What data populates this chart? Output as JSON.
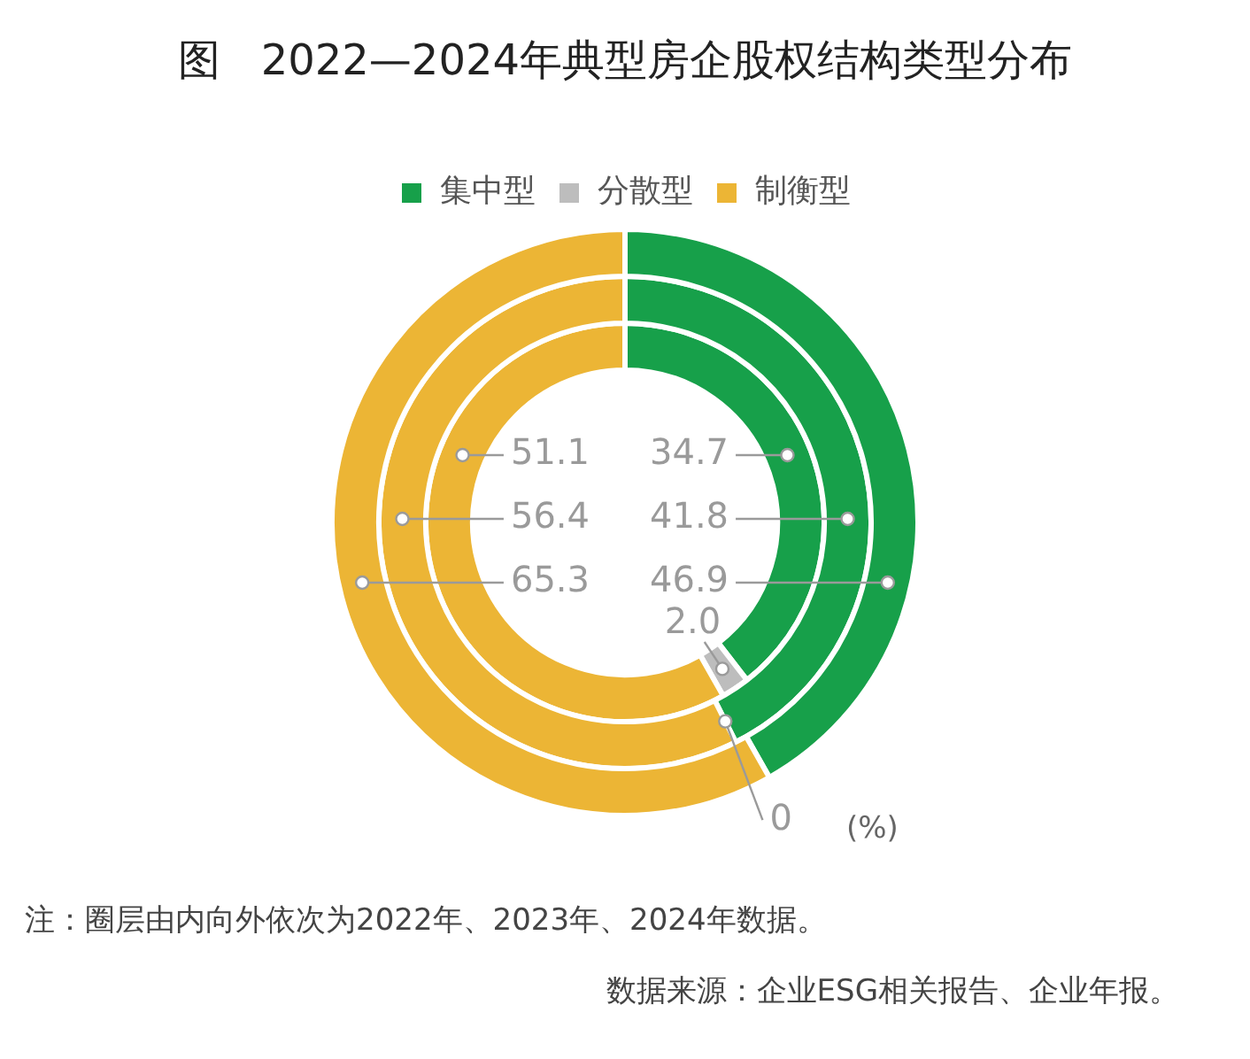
{
  "chart_data": {
    "type": "donut",
    "title": "图   2022—2024年典型房企股权结构类型分布",
    "categories": [
      "集中型",
      "分散型",
      "制衡型"
    ],
    "colors": [
      "#17a04a",
      "#bdbdbd",
      "#ecb535"
    ],
    "series": [
      {
        "values": [
          46.9,
          0,
          65.3
        ],
        "value_labels": [
          "46.9",
          null,
          "65.3"
        ]
      },
      {
        "values": [
          41.8,
          0,
          56.4
        ],
        "value_labels": [
          "41.8",
          "0",
          "56.4"
        ]
      },
      {
        "values": [
          34.7,
          2.0,
          51.1
        ],
        "value_labels": [
          "34.7",
          "2.0",
          "51.1"
        ]
      }
    ],
    "legend": "top",
    "annotations": [
      "(%)",
      "注：圈层由内向外依次为2022年、2023年、2024年数据。",
      "数据来源：企业ESG相关报告、企业年报。"
    ]
  }
}
